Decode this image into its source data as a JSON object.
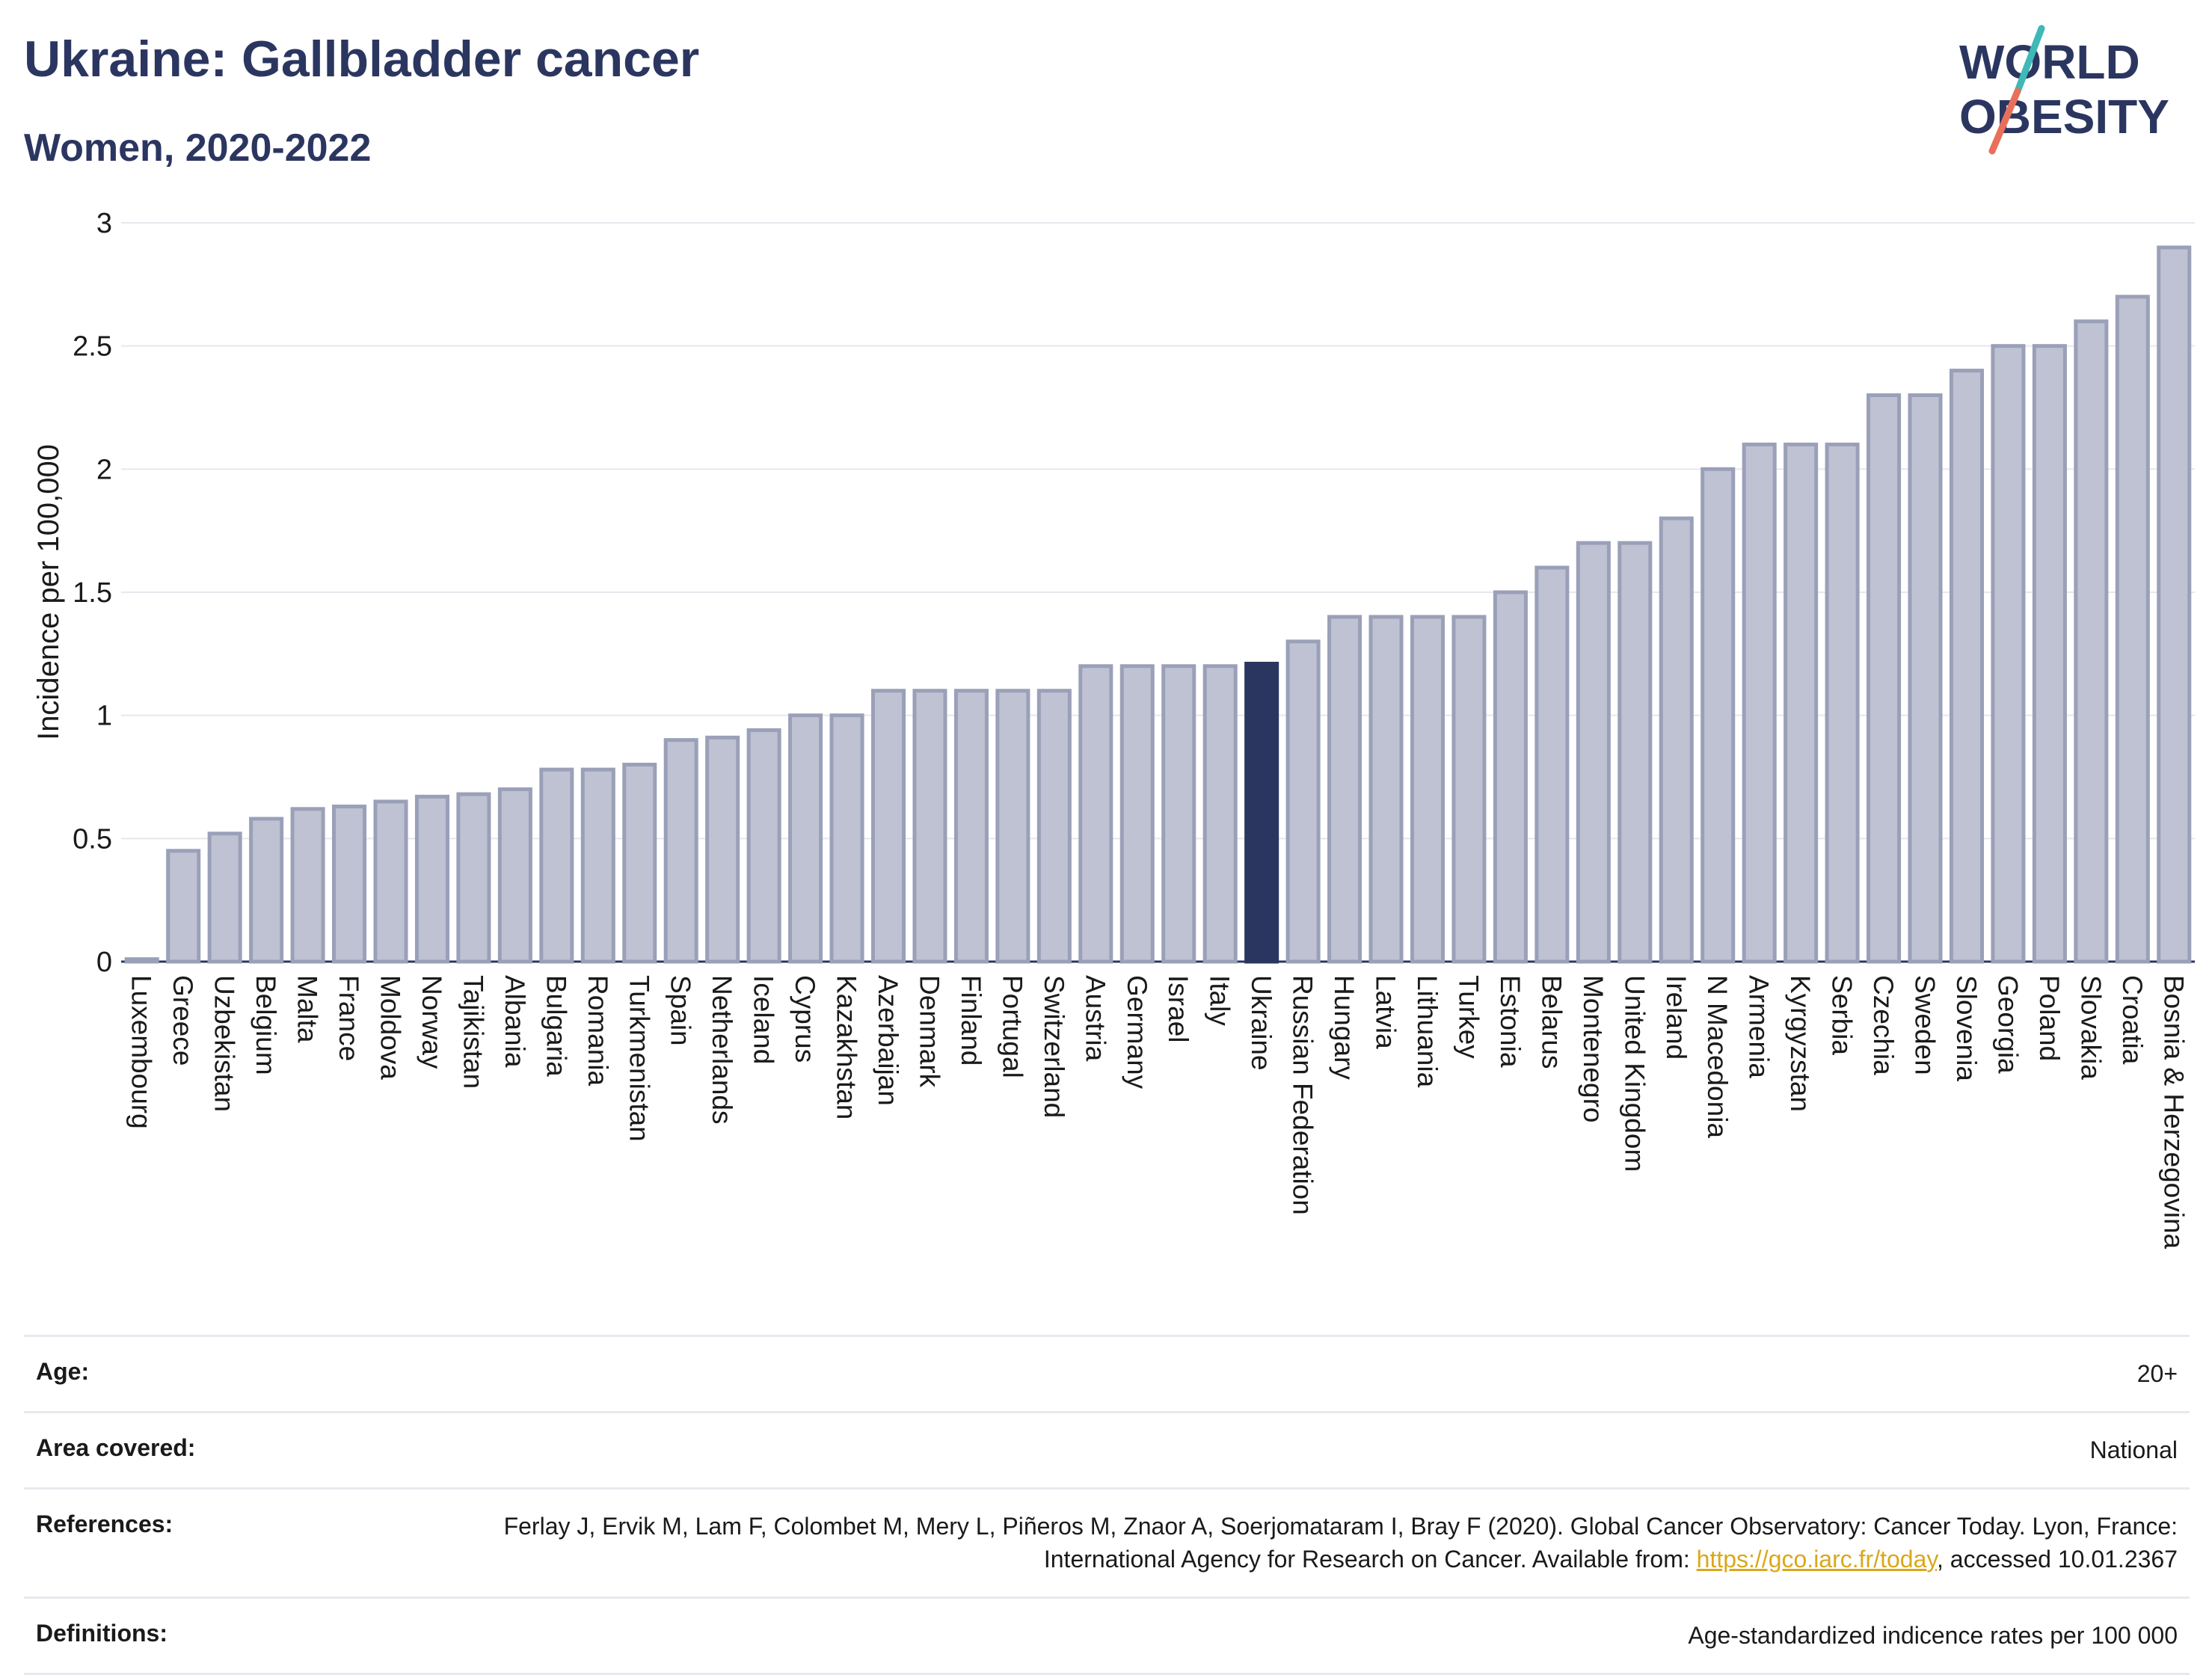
{
  "header": {
    "title": "Ukraine: Gallbladder cancer",
    "subtitle": "Women, 2020-2022"
  },
  "logo": {
    "line1": "WORLD",
    "line2": "OBESITY",
    "colors": {
      "text": "#2b3660",
      "slash_top": "#3fb8b8",
      "slash_bottom": "#e8705a"
    }
  },
  "chart_data": {
    "type": "bar",
    "ylabel": "Incidence per 100,000",
    "ylim": [
      0,
      3
    ],
    "yticks": [
      0,
      0.5,
      1,
      1.5,
      2,
      2.5,
      3
    ],
    "grid": true,
    "highlight": "Ukraine",
    "colors": {
      "bar": "#bfc2d2",
      "bar_border": "#9aa0b8",
      "highlight": "#2b3660"
    },
    "categories": [
      "Luxembourg",
      "Greece",
      "Uzbekistan",
      "Belgium",
      "Malta",
      "France",
      "Moldova",
      "Norway",
      "Tajikistan",
      "Albania",
      "Bulgaria",
      "Romania",
      "Turkmenistan",
      "Spain",
      "Netherlands",
      "Iceland",
      "Cyprus",
      "Kazakhstan",
      "Azerbaijan",
      "Denmark",
      "Finland",
      "Portugal",
      "Switzerland",
      "Austria",
      "Germany",
      "Israel",
      "Italy",
      "Ukraine",
      "Russian Federation",
      "Hungary",
      "Latvia",
      "Lithuania",
      "Turkey",
      "Estonia",
      "Belarus",
      "Montenegro",
      "United Kingdom",
      "Ireland",
      "N Macedonia",
      "Armenia",
      "Kyrgyzstan",
      "Serbia",
      "Czechia",
      "Sweden",
      "Slovenia",
      "Georgia",
      "Poland",
      "Slovakia",
      "Croatia",
      "Bosnia & Herzegovina"
    ],
    "values": [
      0.01,
      0.45,
      0.52,
      0.58,
      0.62,
      0.63,
      0.65,
      0.67,
      0.68,
      0.7,
      0.78,
      0.78,
      0.8,
      0.9,
      0.91,
      0.94,
      1.0,
      1.0,
      1.1,
      1.1,
      1.1,
      1.1,
      1.1,
      1.2,
      1.2,
      1.2,
      1.2,
      1.21,
      1.3,
      1.4,
      1.4,
      1.4,
      1.4,
      1.5,
      1.6,
      1.7,
      1.7,
      1.8,
      2.0,
      2.1,
      2.1,
      2.1,
      2.3,
      2.3,
      2.4,
      2.5,
      2.5,
      2.6,
      2.7,
      2.9
    ]
  },
  "info": {
    "rows": [
      {
        "key": "Age:",
        "value": "20+"
      },
      {
        "key": "Area covered:",
        "value": "National"
      },
      {
        "key": "References:",
        "value": "Ferlay J, Ervik M, Lam F, Colombet M, Mery L, Piñeros M, Znaor A, Soerjomataram I, Bray F (2020). Global Cancer Observatory: Cancer Today. Lyon, France: International Agency for Research on Cancer. Available from: ",
        "link": "https://gco.iarc.fr/today",
        "suffix": ", accessed 10.01.2367"
      },
      {
        "key": "Definitions:",
        "value": "Age-standardized indicence rates per 100 000"
      }
    ]
  }
}
